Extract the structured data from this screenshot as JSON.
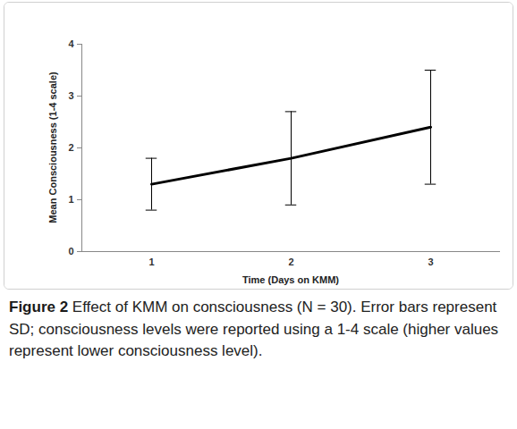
{
  "chart_data": {
    "type": "line",
    "title": "Figure 2",
    "caption": "Effect of KMM on consciousness (N = 30). Error bars represent SD; consciousness levels were reported using a 1-4 scale (higher values represent lower consciousness level).",
    "x_label": "Time (Days on KMM)",
    "y_label": "Mean Consciousness (1-4 scale)",
    "categories": [
      "1",
      "2",
      "3"
    ],
    "values": [
      1.3,
      1.8,
      2.4
    ],
    "sd": [
      0.5,
      0.9,
      1.1
    ],
    "color": "#000000",
    "ylim": [
      0,
      4
    ],
    "yticks": [
      0,
      1,
      2,
      3,
      4
    ],
    "grid": false
  }
}
